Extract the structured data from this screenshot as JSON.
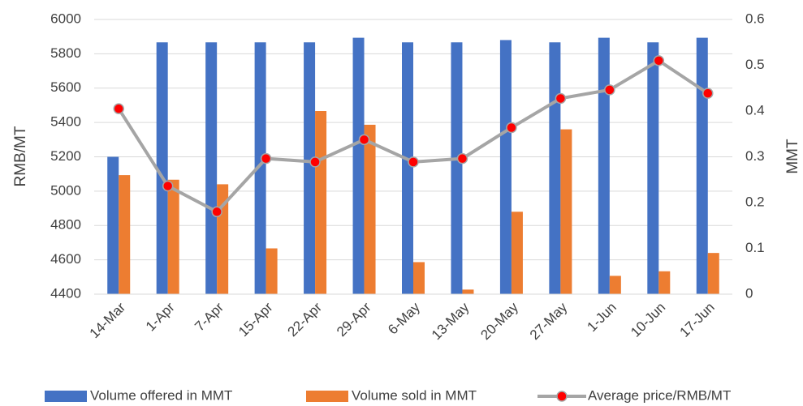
{
  "chart_data": {
    "type": "bar-line",
    "y_label": "RMB/MT",
    "y2_label": "MMT",
    "categories": [
      "14-Mar",
      "1-Apr",
      "7-Apr",
      "15-Apr",
      "22-Apr",
      "29-Apr",
      "6-May",
      "13-May",
      "20-May",
      "27-May",
      "1-Jun",
      "10-Jun",
      "17-Jun"
    ],
    "series": [
      {
        "name": "Volume offered in MMT",
        "type": "bar",
        "axis": "y2",
        "color": "#4472c4",
        "values": [
          0.3,
          0.55,
          0.55,
          0.55,
          0.55,
          0.56,
          0.55,
          0.55,
          0.555,
          0.55,
          0.56,
          0.55,
          0.56
        ]
      },
      {
        "name": "Volume sold in MMT",
        "type": "bar",
        "axis": "y2",
        "color": "#ed7d31",
        "values": [
          0.26,
          0.25,
          0.24,
          0.1,
          0.4,
          0.37,
          0.07,
          0.01,
          0.18,
          0.36,
          0.04,
          0.05,
          0.09
        ]
      },
      {
        "name": "Average price/RMB/MT",
        "type": "line",
        "axis": "y",
        "color": "#a5a5a5",
        "marker_color": "#ff0000",
        "values": [
          5480,
          5030,
          4880,
          5190,
          5170,
          5300,
          5170,
          5190,
          5370,
          5540,
          5590,
          5760,
          5570
        ]
      }
    ],
    "ylim": [
      4400,
      6000
    ],
    "yticks": [
      4400,
      4600,
      4800,
      5000,
      5200,
      5400,
      5600,
      5800,
      6000
    ],
    "y2lim": [
      0,
      0.6
    ],
    "y2ticks": [
      0,
      0.1,
      0.2,
      0.3,
      0.4,
      0.5,
      0.6
    ],
    "grid": true,
    "legend": "bottom"
  }
}
